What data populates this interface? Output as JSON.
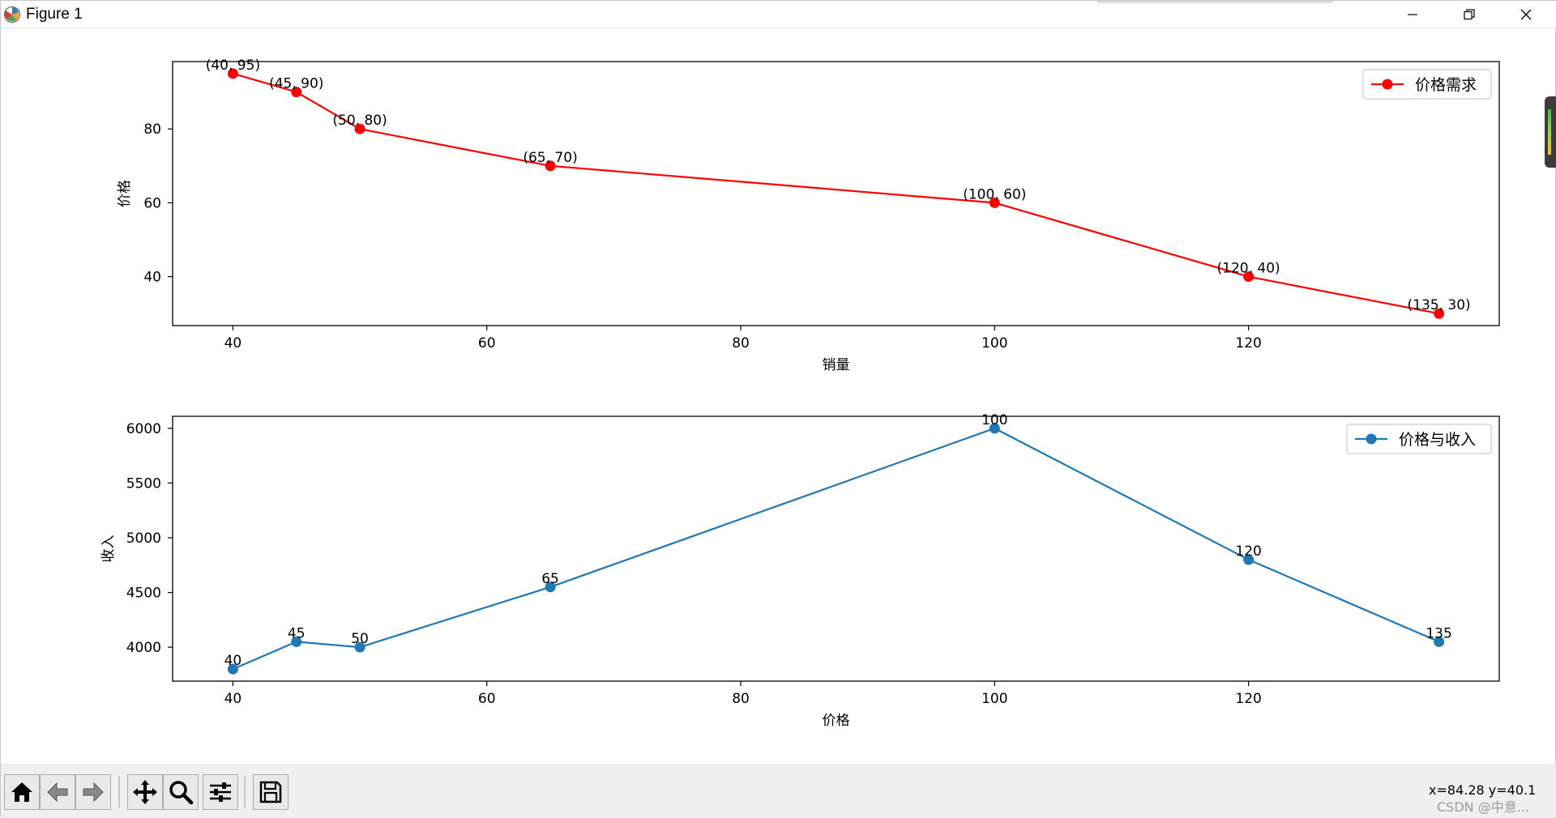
{
  "window": {
    "title": "Figure 1"
  },
  "icons": {
    "app": "matplotlib-figure-icon",
    "minimize": "minimize-icon",
    "maximize": "restore-icon",
    "close": "close-icon",
    "home": "home-icon",
    "back": "arrow-left-icon",
    "forward": "arrow-right-icon",
    "pan": "move-arrows-icon",
    "zoom": "magnifier-icon",
    "configure": "sliders-icon",
    "save": "floppy-disk-icon"
  },
  "status": {
    "coords": "x=84.28 y=40.1",
    "watermark": "CSDN @中意..."
  },
  "chart_data": [
    {
      "type": "line",
      "x": [
        40,
        45,
        50,
        65,
        100,
        120,
        135
      ],
      "series": [
        {
          "name": "价格需求",
          "values": [
            95,
            90,
            80,
            70,
            60,
            40,
            30
          ],
          "color": "#ff0000",
          "marker": "circle"
        }
      ],
      "annotations": [
        "(40, 95)",
        "(45, 90)",
        "(50, 80)",
        "(65, 70)",
        "(100, 60)",
        "(120, 40)",
        "(135, 30)"
      ],
      "xlabel": "销量",
      "ylabel": "价格",
      "xlim": [
        35.25,
        139.75
      ],
      "ylim": [
        26.75,
        98.25
      ],
      "xticks": [
        40,
        60,
        80,
        100,
        120
      ],
      "yticks": [
        40,
        60,
        80
      ],
      "legend": "upper right",
      "grid": false
    },
    {
      "type": "line",
      "x": [
        40,
        45,
        50,
        65,
        100,
        120,
        135
      ],
      "series": [
        {
          "name": "价格与收入",
          "values": [
            3800,
            4050,
            4000,
            4550,
            6000,
            4800,
            4050
          ],
          "color": "#1f77b4",
          "marker": "circle"
        }
      ],
      "annotations": [
        "40",
        "45",
        "50",
        "65",
        "100",
        "120",
        "135"
      ],
      "xlabel": "价格",
      "ylabel": "收入",
      "xlim": [
        35.25,
        139.75
      ],
      "ylim": [
        3690,
        6110
      ],
      "xticks": [
        40,
        60,
        80,
        100,
        120
      ],
      "yticks": [
        4000,
        4500,
        5000,
        5500,
        6000
      ],
      "legend": "upper right",
      "grid": false
    }
  ]
}
